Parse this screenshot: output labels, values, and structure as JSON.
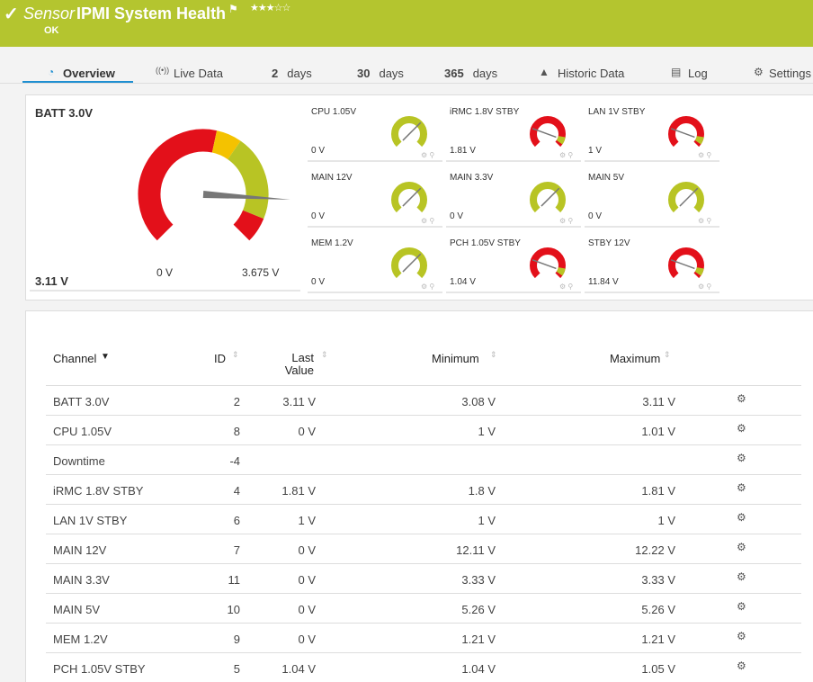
{
  "header": {
    "sensor_label": "Sensor",
    "title": "IPMI System Health",
    "rating": 3,
    "status": "OK"
  },
  "tabs": [
    {
      "text": "Overview"
    },
    {
      "text": "Live Data"
    },
    {
      "bold": "2",
      "text": "days"
    },
    {
      "bold": "30",
      "text": "days"
    },
    {
      "bold": "365",
      "text": "days"
    },
    {
      "text": "Historic Data"
    },
    {
      "text": "Log"
    },
    {
      "text": "Settings"
    }
  ],
  "main_gauge": {
    "name": "BATT 3.0V",
    "value": 3.11,
    "value_label": "3.11 V",
    "min": 0,
    "max": 3.675,
    "min_label": "0 V",
    "max_label": "3.675 V"
  },
  "gauges": [
    {
      "name": "CPU 1.05V",
      "value": "0 V",
      "color": "#b8c424"
    },
    {
      "name": "iRMC 1.8V STBY",
      "value": "1.81 V",
      "color": "#e3101a"
    },
    {
      "name": "LAN 1V STBY",
      "value": "1 V",
      "color": "#e3101a"
    },
    {
      "name": "MAIN 12V",
      "value": "0 V",
      "color": "#b8c424"
    },
    {
      "name": "MAIN 3.3V",
      "value": "0 V",
      "color": "#b8c424"
    },
    {
      "name": "MAIN 5V",
      "value": "0 V",
      "color": "#b8c424"
    },
    {
      "name": "MEM 1.2V",
      "value": "0 V",
      "color": "#b8c424"
    },
    {
      "name": "PCH 1.05V STBY",
      "value": "1.04 V",
      "color": "#e3101a"
    },
    {
      "name": "STBY 12V",
      "value": "11.84 V",
      "color": "#e3101a"
    }
  ],
  "table": {
    "headers": [
      "Channel",
      "ID",
      "Last Value",
      "Minimum",
      "Maximum"
    ],
    "rows": [
      {
        "channel": "BATT 3.0V",
        "id": "2",
        "last": "3.11 V",
        "min": "3.08 V",
        "max": "3.11 V"
      },
      {
        "channel": "CPU 1.05V",
        "id": "8",
        "last": "0 V",
        "min": "1 V",
        "max": "1.01 V"
      },
      {
        "channel": "Downtime",
        "id": "-4"
      },
      {
        "channel": "iRMC 1.8V STBY",
        "id": "4",
        "last": "1.81 V",
        "min": "1.8 V",
        "max": "1.81 V"
      },
      {
        "channel": "LAN 1V STBY",
        "id": "6",
        "last": "1 V",
        "min": "1 V",
        "max": "1 V"
      },
      {
        "channel": "MAIN 12V",
        "id": "7",
        "last": "0 V",
        "min": "12.11 V",
        "max": "12.22 V"
      },
      {
        "channel": "MAIN 3.3V",
        "id": "11",
        "last": "0 V",
        "min": "3.33 V",
        "max": "3.33 V"
      },
      {
        "channel": "MAIN 5V",
        "id": "10",
        "last": "0 V",
        "min": "5.26 V",
        "max": "5.26 V"
      },
      {
        "channel": "MEM 1.2V",
        "id": "9",
        "last": "0 V",
        "min": "1.21 V",
        "max": "1.21 V"
      },
      {
        "channel": "PCH 1.05V STBY",
        "id": "5",
        "last": "1.04 V",
        "min": "1.04 V",
        "max": "1.05 V"
      }
    ]
  }
}
